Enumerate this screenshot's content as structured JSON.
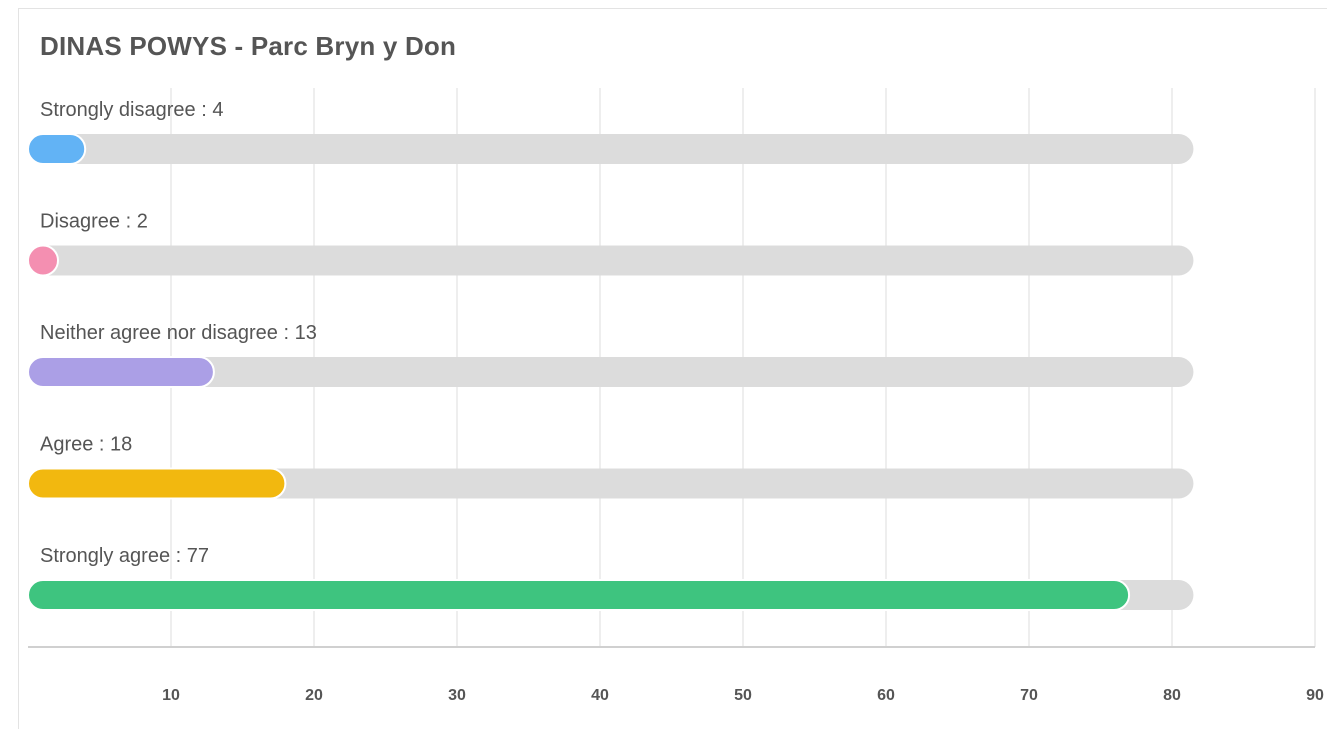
{
  "chart_data": {
    "type": "bar",
    "orientation": "horizontal",
    "title": "DINAS POWYS - Parc Bryn y Don",
    "categories": [
      "Strongly disagree",
      "Disagree",
      "Neither agree nor disagree",
      "Agree",
      "Strongly agree"
    ],
    "values": [
      4,
      2,
      13,
      18,
      77
    ],
    "label_separator": " : ",
    "colors": [
      "#62b3f5",
      "#f48fb1",
      "#ab9fe6",
      "#f2b80f",
      "#3ec47f"
    ],
    "track_color": "#dcdcdc",
    "track_max": 81.5,
    "xlim": [
      0,
      90
    ],
    "x_ticks": [
      10,
      20,
      30,
      40,
      50,
      60,
      70,
      80,
      90
    ],
    "grid": true,
    "legend": "none"
  }
}
